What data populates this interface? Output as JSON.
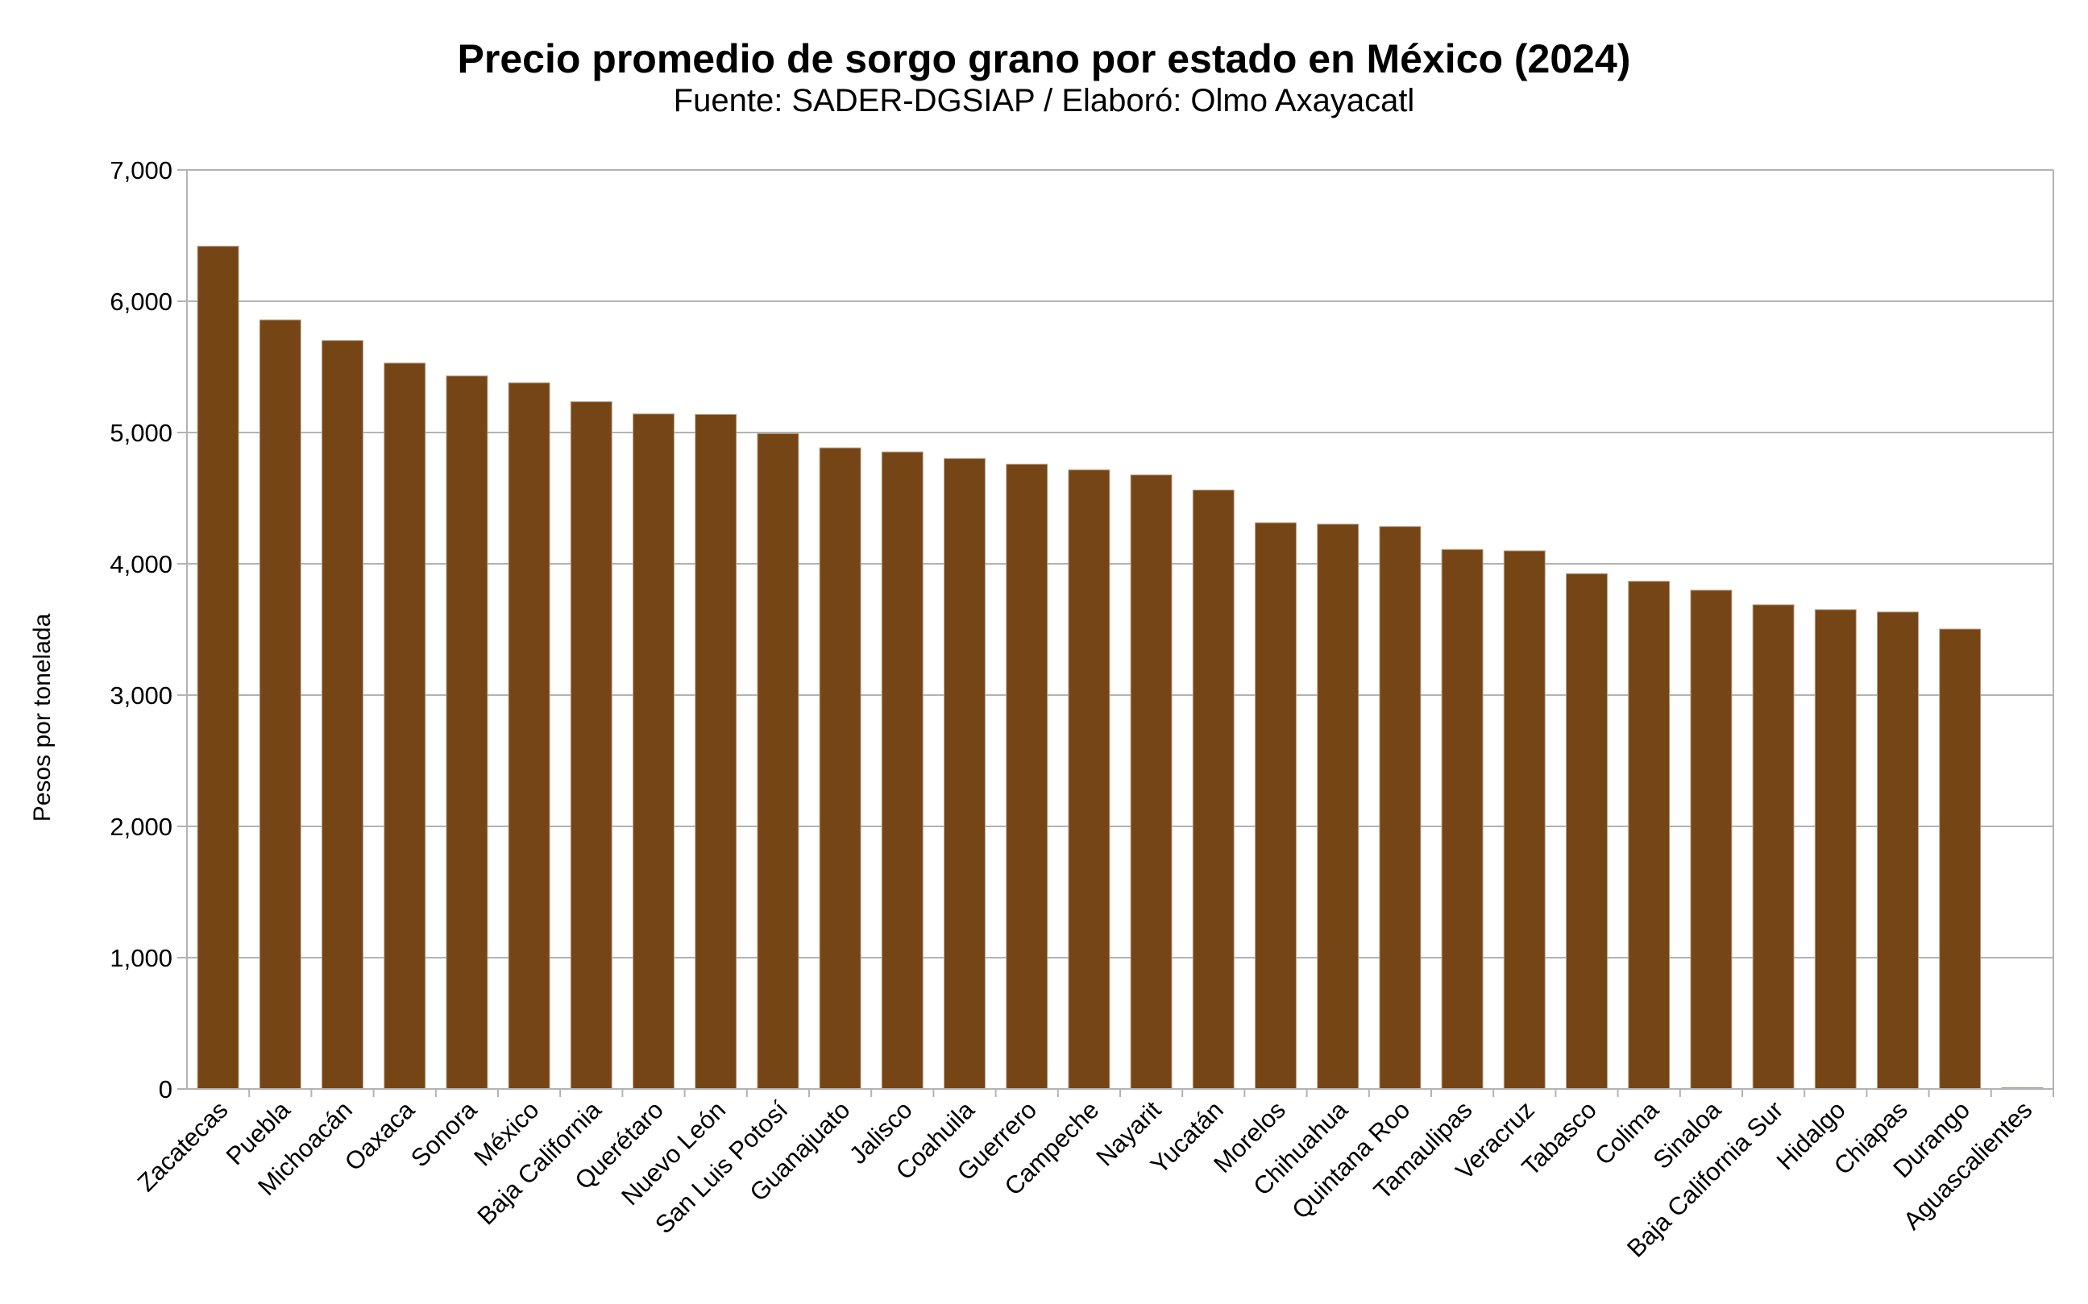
{
  "chart_data": {
    "type": "bar",
    "title": "Precio promedio de sorgo grano por estado en México (2024)",
    "subtitle": "Fuente: SADER-DGSIAP / Elaboró: Olmo Axayacatl",
    "xlabel": "",
    "ylabel": "Pesos por tonelada",
    "ylim": [
      0,
      7000
    ],
    "yticks": [
      0,
      1000,
      2000,
      3000,
      4000,
      5000,
      6000,
      7000
    ],
    "ytick_labels": [
      "0",
      "1,000",
      "2,000",
      "3,000",
      "4,000",
      "5,000",
      "6,000",
      "7,000"
    ],
    "grid": true,
    "bar_color": "#754515",
    "categories": [
      "Zacatecas",
      "Puebla",
      "Michoacán",
      "Oaxaca",
      "Sonora",
      "México",
      "Baja California",
      "Querétaro",
      "Nuevo León",
      "San Luis Potosí",
      "Guanajuato",
      "Jalisco",
      "Coahuila",
      "Guerrero",
      "Campeche",
      "Nayarit",
      "Yucatán",
      "Morelos",
      "Chihuahua",
      "Quintana Roo",
      "Tamaulipas",
      "Veracruz",
      "Tabasco",
      "Colima",
      "Sinaloa",
      "Baja California Sur",
      "Hidalgo",
      "Chiapas",
      "Durango",
      "Aguascalientes"
    ],
    "values": [
      6419,
      5858,
      5701,
      5529,
      5431,
      5379,
      5235,
      5142,
      5138,
      4992,
      4883,
      4852,
      4802,
      4759,
      4716,
      4677,
      4562,
      4313,
      4302,
      4284,
      4109,
      4099,
      3925,
      3867,
      3799,
      3688,
      3651,
      3633,
      3503,
      10
    ]
  }
}
